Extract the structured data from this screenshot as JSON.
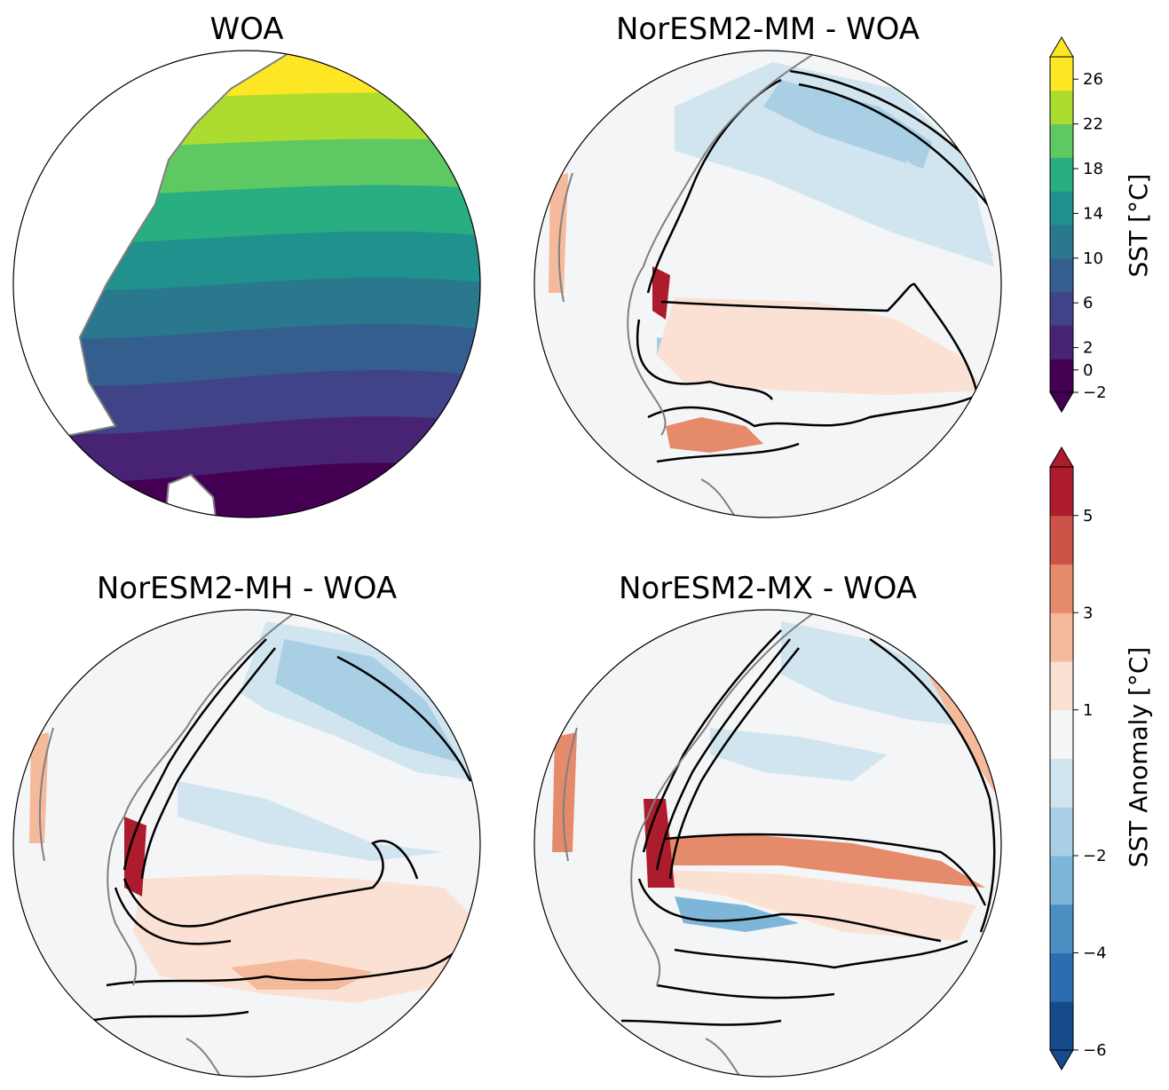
{
  "chart_data": [
    {
      "type": "heatmap",
      "title": "WOA",
      "variable": "sst",
      "projection": "orthographic (South Atlantic)",
      "colormap": "viridis"
    },
    {
      "type": "heatmap",
      "title": "NorESM2-MM - WOA",
      "variable": "anomaly",
      "projection": "orthographic (South Atlantic)",
      "colormap": "RdBu_r",
      "contours": "black contour lines"
    },
    {
      "type": "heatmap",
      "title": "NorESM2-MH - WOA",
      "variable": "anomaly",
      "projection": "orthographic (South Atlantic)",
      "colormap": "RdBu_r",
      "contours": "black contour lines"
    },
    {
      "type": "heatmap",
      "title": "NorESM2-MX - WOA",
      "variable": "anomaly",
      "projection": "orthographic (South Atlantic)",
      "colormap": "RdBu_r",
      "contours": "black contour lines"
    }
  ],
  "colorbars": {
    "sst": {
      "label": "SST [°C]",
      "ticks": [
        "−2",
        "0",
        "2",
        "6",
        "10",
        "14",
        "18",
        "22",
        "26"
      ],
      "tick_values": [
        -2,
        0,
        2,
        6,
        10,
        14,
        18,
        22,
        26
      ],
      "range": [
        -2,
        28
      ],
      "extend": "both",
      "colors": [
        "#440154",
        "#482374",
        "#404387",
        "#345e8d",
        "#29788e",
        "#20918c",
        "#28ae80",
        "#5ec962",
        "#addc30",
        "#fde725"
      ]
    },
    "anomaly": {
      "label": "SST Anomaly [°C]",
      "ticks": [
        "−6",
        "−4",
        "−2",
        "1",
        "3",
        "5"
      ],
      "tick_values": [
        -6,
        -4,
        -2,
        1,
        3,
        5
      ],
      "range": [
        -6,
        6
      ],
      "extend": "both",
      "colors": [
        "#174a8a",
        "#2a6eb1",
        "#4a8fc2",
        "#7db6d8",
        "#a9cfe5",
        "#d1e5f0",
        "#f4f5f6",
        "#fbe1d4",
        "#f5b99b",
        "#e58a6b",
        "#cb5348",
        "#ac1c2c"
      ]
    }
  }
}
